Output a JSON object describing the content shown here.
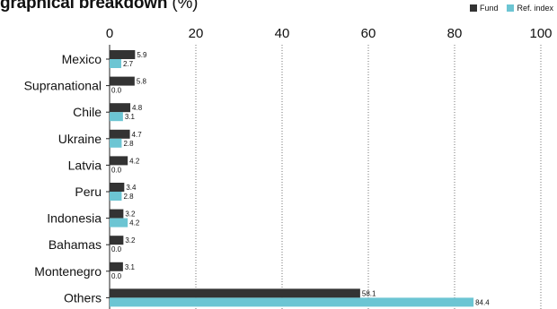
{
  "chart_data": {
    "type": "bar",
    "orientation": "horizontal",
    "title": "graphical breakdown",
    "title_unit": "(%)",
    "categories": [
      "Mexico",
      "Supranational",
      "Chile",
      "Ukraine",
      "Latvia",
      "Peru",
      "Indonesia",
      "Bahamas",
      "Montenegro",
      "Others"
    ],
    "series": [
      {
        "name": "Fund",
        "color": "#333333",
        "values": [
          5.9,
          5.8,
          4.8,
          4.7,
          4.2,
          3.4,
          3.2,
          3.2,
          3.1,
          58.1
        ]
      },
      {
        "name": "Ref. index",
        "color": "#6cc5d3",
        "values": [
          2.7,
          0.0,
          3.1,
          2.8,
          0.0,
          2.8,
          4.2,
          0.0,
          0.0,
          84.4
        ]
      }
    ],
    "xlim": [
      0,
      100
    ],
    "xticks": [
      0,
      20,
      40,
      60,
      80,
      100
    ],
    "grid": "vertical dotted",
    "legend_position": "top-right",
    "xlabel": "",
    "ylabel": ""
  }
}
